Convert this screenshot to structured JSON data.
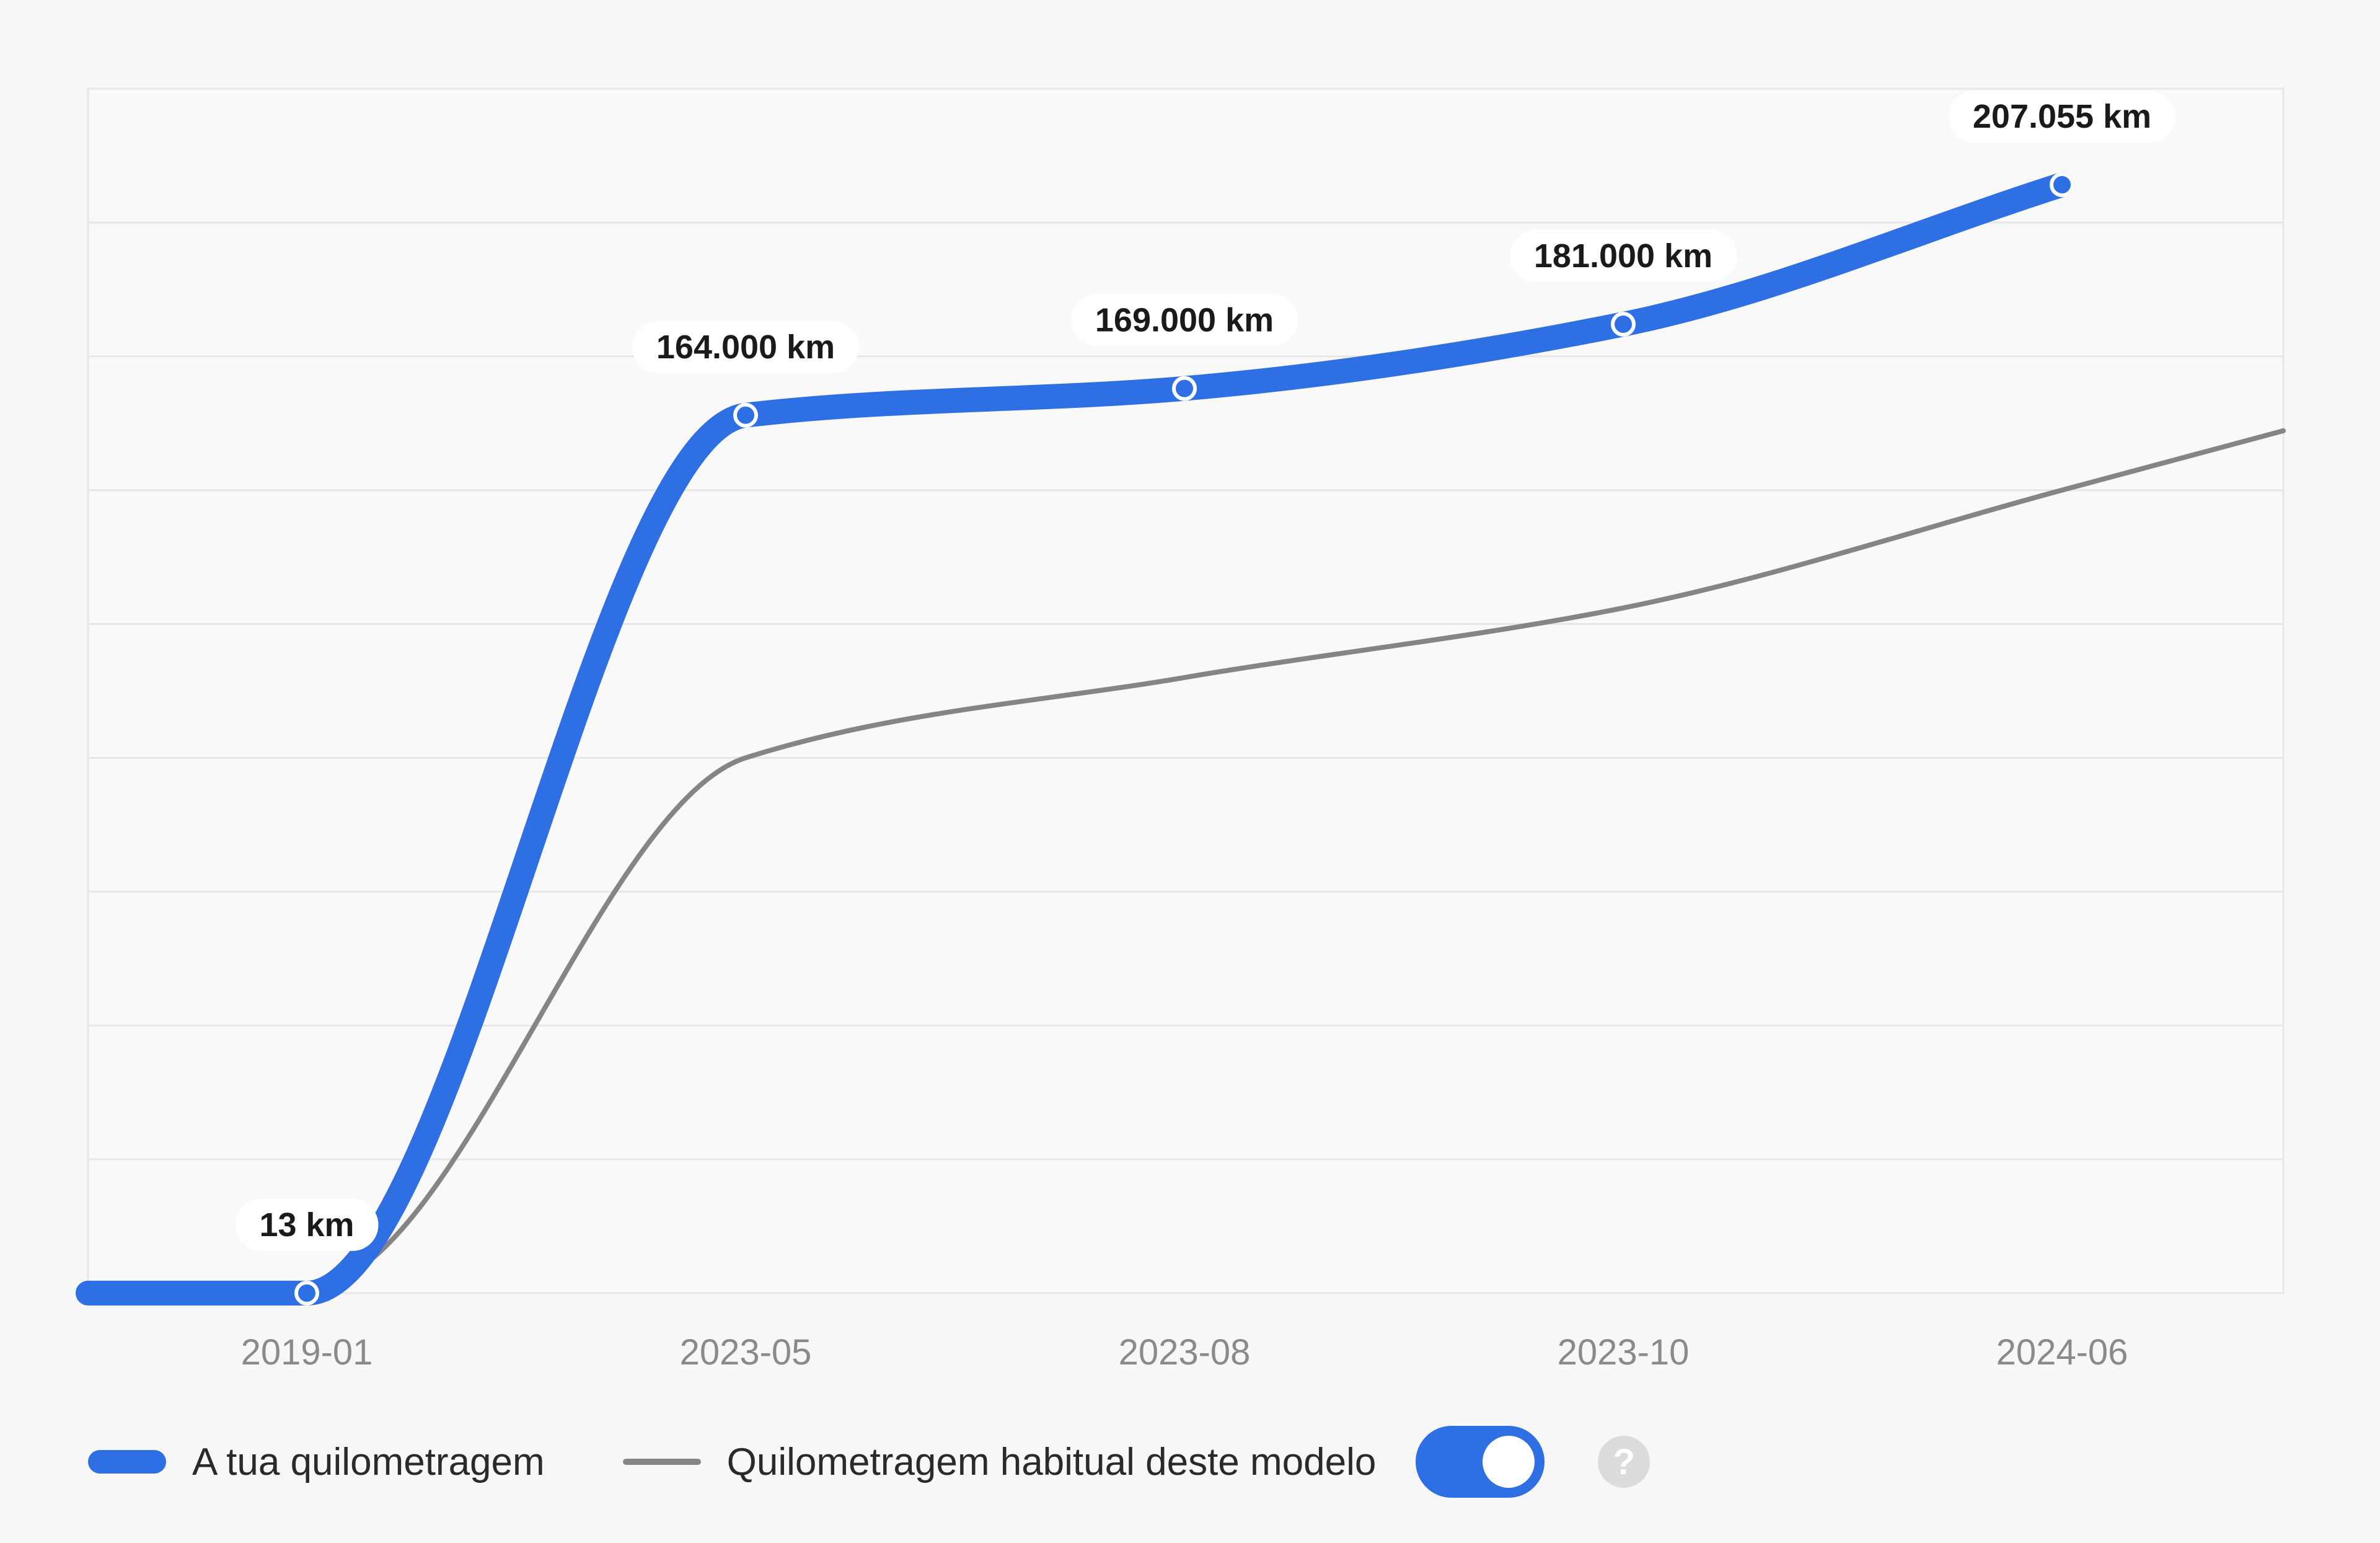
{
  "colors": {
    "background": "#f7f7f7",
    "plot_background": "#f9f9f9",
    "grid": "#e7e7e7",
    "user_line": "#2f6fe4",
    "average_line": "#858585",
    "label_box": "#ffffff",
    "toggle_on": "#2f6fe4",
    "help_icon_bg": "#dcdcdc"
  },
  "legend": {
    "user_label": "A tua quilometragem",
    "average_label": "Quilometragem habitual deste modelo",
    "toggle_state": "on",
    "help_icon": "question-mark",
    "help_symbol": "?"
  },
  "chart_data": {
    "type": "line",
    "x_scale": "categorical",
    "categories": [
      "2019-01",
      "2023-05",
      "2023-08",
      "2023-10",
      "2024-06"
    ],
    "grid": true,
    "legend_position": "bottom-left",
    "y_axis_labels_shown": false,
    "series": [
      {
        "name": "A tua quilometragem",
        "values": [
          13,
          164000,
          169000,
          181000,
          207055
        ],
        "labels": [
          "13 km",
          "164.000 km",
          "169.000 km",
          "181.000 km",
          "207.055 km"
        ]
      },
      {
        "name": "Quilometragem habitual deste modelo",
        "values": [
          1000,
          100000,
          115000,
          128000,
          150000
        ]
      }
    ]
  }
}
